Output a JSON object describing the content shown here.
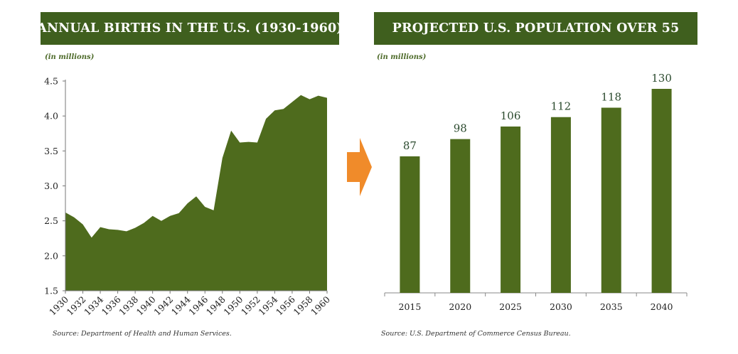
{
  "colors": {
    "header_bg": "#3f5f1e",
    "series_fill": "#4e6b1d",
    "arrow": "#f08b2a"
  },
  "chart_data": [
    {
      "type": "area",
      "title": "ANNUAL BIRTHS IN THE U.S. (1930-1960)",
      "unit_label": "(in millions)",
      "source": "Source: Department of Health and Human Services.",
      "x": [
        1930,
        1931,
        1932,
        1933,
        1934,
        1935,
        1936,
        1937,
        1938,
        1939,
        1940,
        1941,
        1942,
        1943,
        1944,
        1945,
        1946,
        1947,
        1948,
        1949,
        1950,
        1951,
        1952,
        1953,
        1954,
        1955,
        1956,
        1957,
        1958,
        1959,
        1960
      ],
      "values": [
        2.62,
        2.55,
        2.45,
        2.26,
        2.41,
        2.38,
        2.37,
        2.35,
        2.4,
        2.47,
        2.57,
        2.5,
        2.57,
        2.61,
        2.75,
        2.85,
        2.7,
        2.65,
        3.4,
        3.79,
        3.62,
        3.63,
        3.62,
        3.96,
        4.08,
        4.1,
        4.2,
        4.3,
        4.24,
        4.29,
        4.26
      ],
      "xticks": [
        "1930",
        "1932",
        "1934",
        "1936",
        "1938",
        "1940",
        "1942",
        "1944",
        "1946",
        "1948",
        "1950",
        "1952",
        "1954",
        "1956",
        "1958",
        "1960"
      ],
      "yticks": [
        "1.5",
        "2.0",
        "2.5",
        "3.0",
        "3.5",
        "4.0",
        "4.5"
      ],
      "ylim": [
        1.5,
        4.5
      ],
      "xlim": [
        1930,
        1960
      ],
      "xlabel": "",
      "ylabel": ""
    },
    {
      "type": "bar",
      "title": "PROJECTED U.S. POPULATION OVER 55",
      "unit_label": "(in millions)",
      "source": "Source: U.S. Department of Commerce Census Bureau.",
      "categories": [
        "2015",
        "2020",
        "2025",
        "2030",
        "2035",
        "2040"
      ],
      "values": [
        87,
        98,
        106,
        112,
        118,
        130
      ],
      "value_labels": [
        "87",
        "98",
        "106",
        "112",
        "118",
        "130"
      ],
      "ylim": [
        0,
        145
      ],
      "xlabel": "",
      "ylabel": ""
    }
  ]
}
